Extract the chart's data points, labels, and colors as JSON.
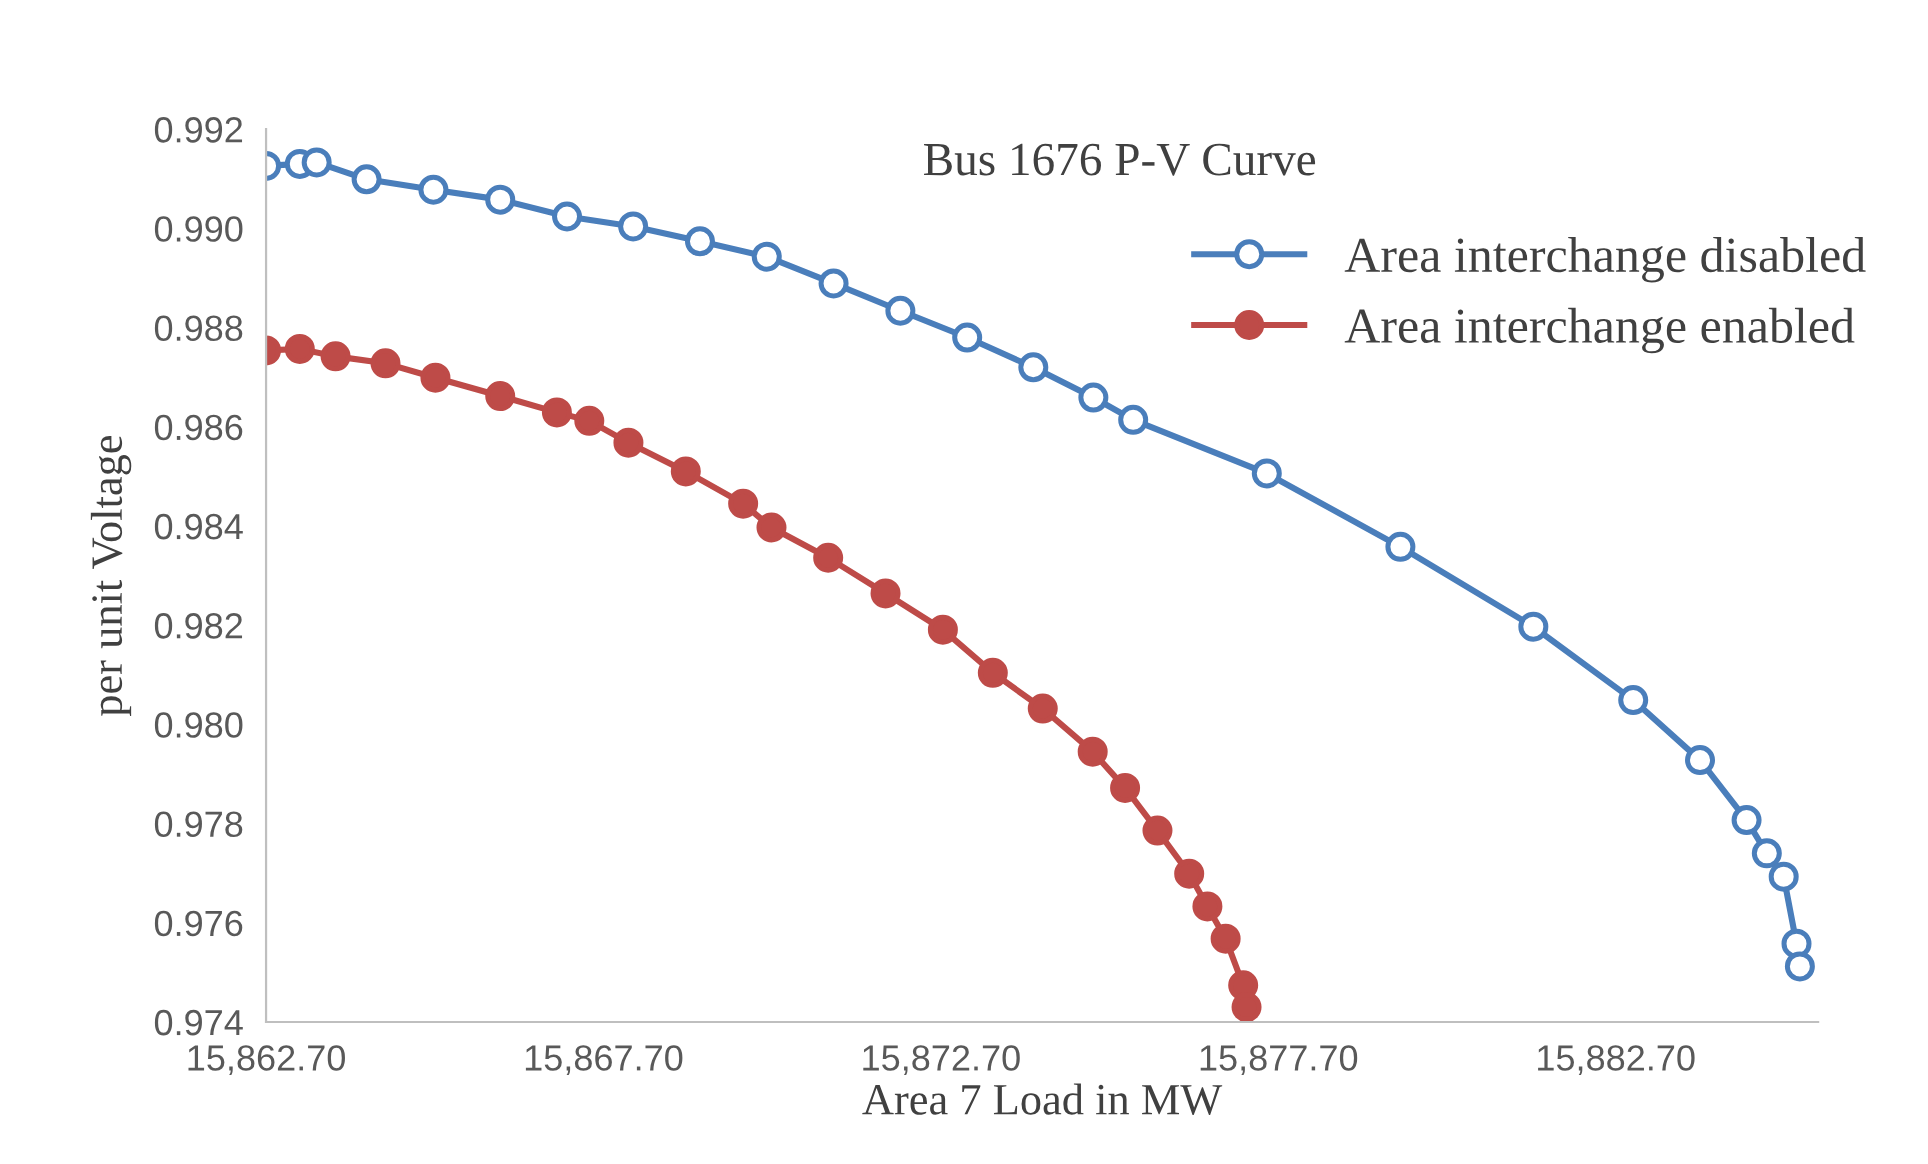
{
  "chart_data": {
    "type": "line",
    "title": "Bus 1676 P-V Curve",
    "xlabel": "Area 7 Load in MW",
    "ylabel": "per unit Voltage",
    "xlim": [
      15862.7,
      15885.7
    ],
    "xticks": [
      {
        "value": 15862.7,
        "label": "15,862.70"
      },
      {
        "value": 15867.7,
        "label": "15,867.70"
      },
      {
        "value": 15872.7,
        "label": "15,872.70"
      },
      {
        "value": 15877.7,
        "label": "15,877.70"
      },
      {
        "value": 15882.7,
        "label": "15,882.70"
      }
    ],
    "ylim": [
      0.974,
      0.992
    ],
    "yticks": [
      {
        "value": 0.974,
        "label": "0.974"
      },
      {
        "value": 0.976,
        "label": "0.976"
      },
      {
        "value": 0.978,
        "label": "0.978"
      },
      {
        "value": 0.98,
        "label": "0.980"
      },
      {
        "value": 0.982,
        "label": "0.982"
      },
      {
        "value": 0.984,
        "label": "0.984"
      },
      {
        "value": 0.986,
        "label": "0.986"
      },
      {
        "value": 0.988,
        "label": "0.988"
      },
      {
        "value": 0.99,
        "label": "0.990"
      },
      {
        "value": 0.992,
        "label": "0.992"
      }
    ],
    "grid": false,
    "legend": "top right",
    "line_style": "solid",
    "series": [
      {
        "name": "Area interchange disabled",
        "color": "#4a7ebb",
        "marker": "circle",
        "x": [
          15862.7,
          15863.2,
          15863.45,
          15864.19,
          15865.18,
          15866.17,
          15867.16,
          15868.14,
          15869.13,
          15870.12,
          15871.11,
          15872.1,
          15873.09,
          15874.07,
          15874.96,
          15875.55,
          15877.53,
          15879.51,
          15881.48,
          15882.96,
          15883.95,
          15884.64,
          15884.94,
          15885.19,
          15885.38,
          15885.43
        ],
        "values": [
          0.99126,
          0.9913,
          0.99133,
          0.99099,
          0.99078,
          0.99058,
          0.99024,
          0.99004,
          0.98974,
          0.98943,
          0.98889,
          0.98834,
          0.9878,
          0.9872,
          0.98659,
          0.98614,
          0.98506,
          0.98358,
          0.98197,
          0.98049,
          0.97928,
          0.97807,
          0.9774,
          0.97693,
          0.97558,
          0.97512
        ]
      },
      {
        "name": "Area interchange enabled",
        "color": "#be4b48",
        "marker": "circle",
        "x": [
          15862.7,
          15863.2,
          15863.73,
          15864.47,
          15865.21,
          15866.17,
          15867.01,
          15867.49,
          15868.07,
          15868.92,
          15869.77,
          15870.19,
          15871.03,
          15871.88,
          15872.73,
          15873.47,
          15874.21,
          15874.95,
          15875.43,
          15875.91,
          15876.38,
          15876.65,
          15876.92,
          15877.18,
          15877.23
        ],
        "values": [
          0.98754,
          0.98757,
          0.98742,
          0.98728,
          0.98699,
          0.98662,
          0.98629,
          0.98612,
          0.98568,
          0.9851,
          0.98445,
          0.98397,
          0.98336,
          0.98264,
          0.98191,
          0.98104,
          0.98032,
          0.97945,
          0.97872,
          0.97786,
          0.97699,
          0.97633,
          0.97568,
          0.97474,
          0.9743
        ]
      }
    ]
  }
}
